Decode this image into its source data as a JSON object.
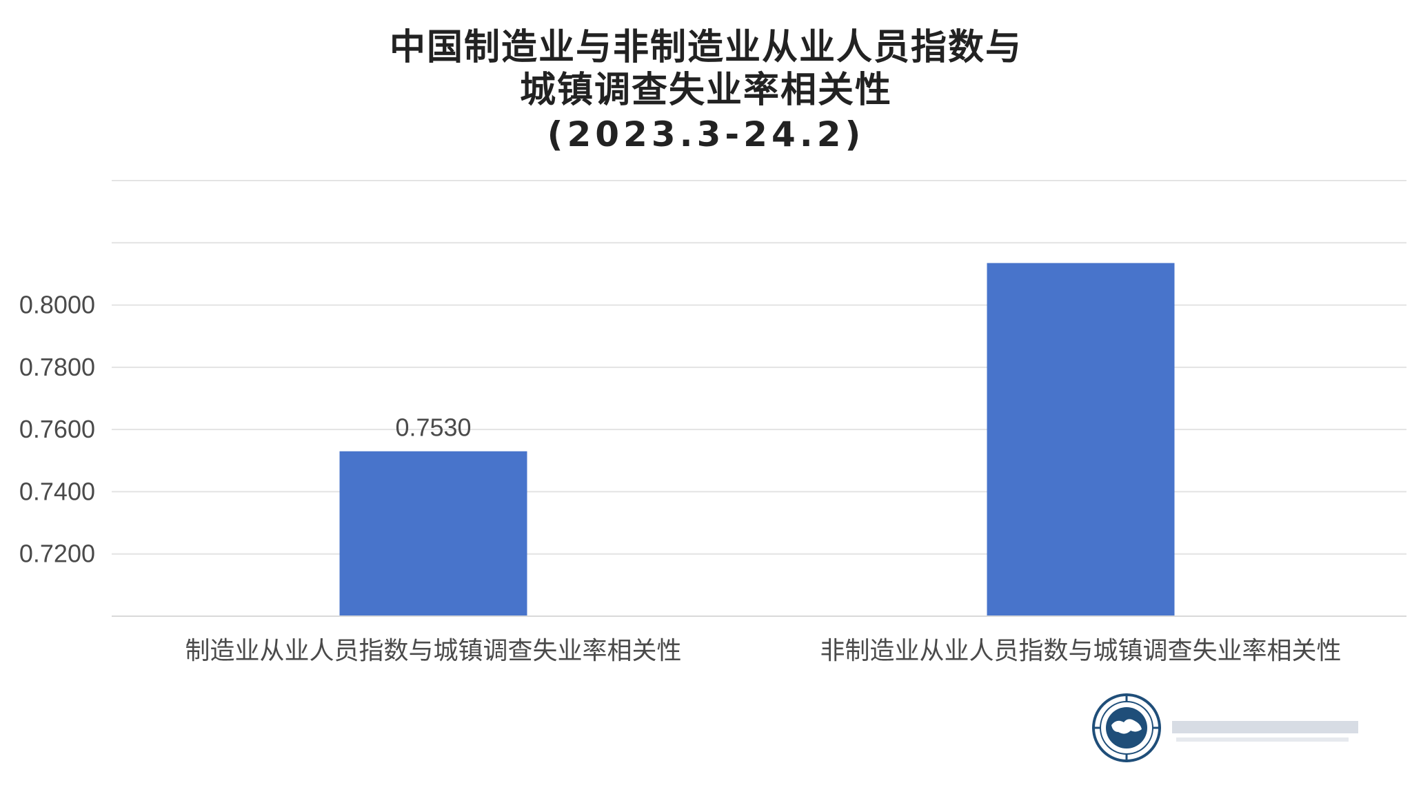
{
  "chart_data": {
    "type": "bar",
    "title_lines": [
      "中国制造业与非制造业从业人员指数与",
      "城镇调查失业率相关性",
      "(2023.3-24.2)"
    ],
    "categories": [
      "制造业从业人员指数与城镇调查失业率相关性",
      "非制造业从业人员指数与城镇调查失业率相关性"
    ],
    "values": [
      0.753,
      0.8135
    ],
    "data_labels": [
      "0.7530",
      ""
    ],
    "y_ticks": [
      "0.7200",
      "0.7400",
      "0.7600",
      "0.7800",
      "0.8000"
    ],
    "ylim": [
      0.7,
      0.84
    ],
    "grid": true,
    "legend": "none",
    "bar_color": "#4874CB"
  }
}
